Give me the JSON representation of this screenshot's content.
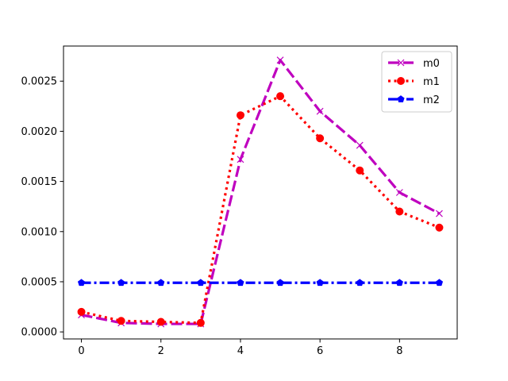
{
  "chart_data": {
    "type": "line",
    "title": "",
    "xlabel": "",
    "ylabel": "",
    "xlim": [
      -0.45,
      9.45
    ],
    "ylim": [
      -7e-05,
      0.00285
    ],
    "xticks": [
      0,
      2,
      4,
      6,
      8
    ],
    "xtick_labels": [
      "0",
      "2",
      "4",
      "6",
      "8"
    ],
    "yticks": [
      0.0,
      0.0005,
      0.001,
      0.0015,
      0.002,
      0.0025
    ],
    "ytick_labels": [
      "0.0000",
      "0.0005",
      "0.0010",
      "0.0015",
      "0.0020",
      "0.0025"
    ],
    "grid": false,
    "legend": "top-right",
    "x": [
      0,
      1,
      2,
      3,
      4,
      5,
      6,
      7,
      8,
      9
    ],
    "series": [
      {
        "name": "m0",
        "color": "#bf00bf",
        "line_style": "dashed",
        "marker": "x",
        "values": [
          0.00017,
          9e-05,
          8e-05,
          8e-05,
          0.00172,
          0.00271,
          0.0022,
          0.00186,
          0.00139,
          0.00118
        ]
      },
      {
        "name": "m1",
        "color": "#ff0000",
        "line_style": "dotted",
        "marker": "circle",
        "values": [
          0.0002,
          0.00011,
          0.0001,
          9e-05,
          0.00216,
          0.00235,
          0.00193,
          0.00161,
          0.0012,
          0.00104
        ]
      },
      {
        "name": "m2",
        "color": "#0000ff",
        "line_style": "dash-dot",
        "marker": "pentagon",
        "values": [
          0.00049,
          0.00049,
          0.00049,
          0.00049,
          0.00049,
          0.00049,
          0.00049,
          0.00049,
          0.00049,
          0.00049
        ]
      }
    ]
  }
}
